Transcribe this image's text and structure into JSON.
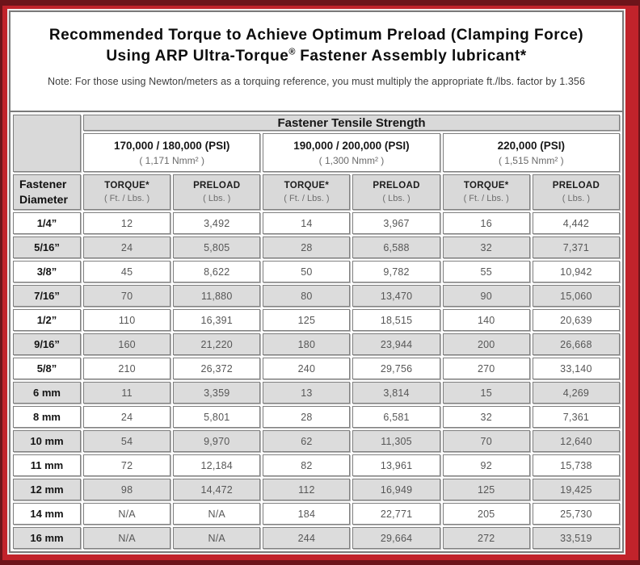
{
  "title": {
    "line1": "Recommended Torque to Achieve Optimum Preload (Clamping Force)",
    "line2_pre": "Using ARP Ultra-Torque",
    "line2_sup": "®",
    "line2_post": " Fastener Assembly lubricant*",
    "note": "Note: For those using Newton/meters as a torquing reference, you must multiply the appropriate ft./lbs. factor by 1.356"
  },
  "table": {
    "tensile_header": "Fastener Tensile Strength",
    "diameter_header_line1": "Fastener",
    "diameter_header_line2": "Diameter",
    "groups": [
      {
        "psi": "170,000 / 180,000 (PSI)",
        "nmm": "( 1,171 Nmm² )"
      },
      {
        "psi": "190,000 / 200,000 (PSI)",
        "nmm": "( 1,300 Nmm² )"
      },
      {
        "psi": "220,000 (PSI)",
        "nmm": "( 1,515 Nmm² )"
      }
    ],
    "col_headers": {
      "torque_line1": "TORQUE*",
      "torque_line2": "( Ft. / Lbs. )",
      "preload_line1": "PRELOAD",
      "preload_line2": "( Lbs. )"
    },
    "rows": [
      {
        "diameter": "1/4”",
        "values": [
          "12",
          "3,492",
          "14",
          "3,967",
          "16",
          "4,442"
        ]
      },
      {
        "diameter": "5/16”",
        "values": [
          "24",
          "5,805",
          "28",
          "6,588",
          "32",
          "7,371"
        ]
      },
      {
        "diameter": "3/8”",
        "values": [
          "45",
          "8,622",
          "50",
          "9,782",
          "55",
          "10,942"
        ]
      },
      {
        "diameter": "7/16”",
        "values": [
          "70",
          "11,880",
          "80",
          "13,470",
          "90",
          "15,060"
        ]
      },
      {
        "diameter": "1/2”",
        "values": [
          "110",
          "16,391",
          "125",
          "18,515",
          "140",
          "20,639"
        ]
      },
      {
        "diameter": "9/16”",
        "values": [
          "160",
          "21,220",
          "180",
          "23,944",
          "200",
          "26,668"
        ]
      },
      {
        "diameter": "5/8”",
        "values": [
          "210",
          "26,372",
          "240",
          "29,756",
          "270",
          "33,140"
        ]
      },
      {
        "diameter": "6 mm",
        "values": [
          "11",
          "3,359",
          "13",
          "3,814",
          "15",
          "4,269"
        ]
      },
      {
        "diameter": "8 mm",
        "values": [
          "24",
          "5,801",
          "28",
          "6,581",
          "32",
          "7,361"
        ]
      },
      {
        "diameter": "10 mm",
        "values": [
          "54",
          "9,970",
          "62",
          "11,305",
          "70",
          "12,640"
        ]
      },
      {
        "diameter": "11 mm",
        "values": [
          "72",
          "12,184",
          "82",
          "13,961",
          "92",
          "15,738"
        ]
      },
      {
        "diameter": "12 mm",
        "values": [
          "98",
          "14,472",
          "112",
          "16,949",
          "125",
          "19,425"
        ]
      },
      {
        "diameter": "14 mm",
        "values": [
          "N/A",
          "N/A",
          "184",
          "22,771",
          "205",
          "25,730"
        ]
      },
      {
        "diameter": "16 mm",
        "values": [
          "N/A",
          "N/A",
          "244",
          "29,664",
          "272",
          "33,519"
        ]
      }
    ]
  },
  "colors": {
    "frame_red": "#c1232b",
    "frame_dark_edge": "#6d141a",
    "header_gray": "#d9d9d9",
    "row_shaded_gray": "#dcdcdc",
    "cell_border": "#7f7f7f",
    "value_text": "#575757"
  }
}
